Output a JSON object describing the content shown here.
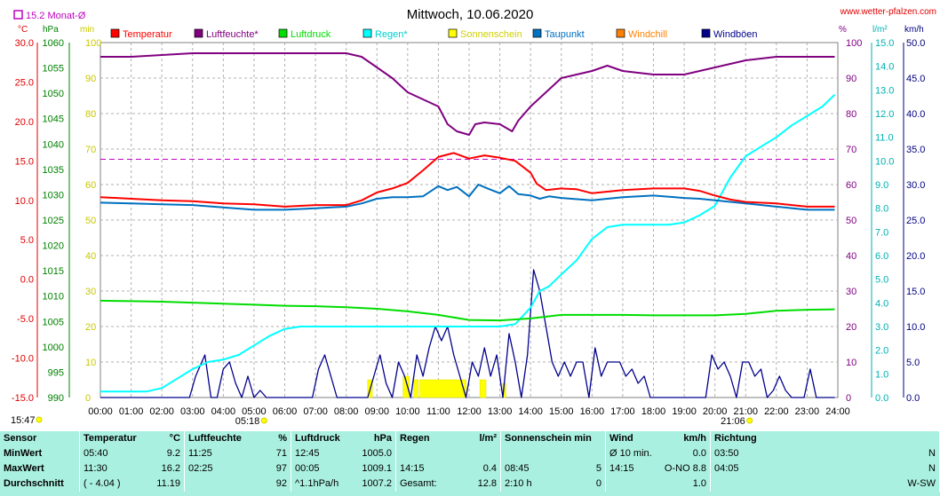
{
  "chart_data": {
    "type": "line",
    "title": "Mittwoch, 10.06.2020",
    "watermark": "www.wetter-pfalzen.com",
    "monthly_avg_label": "15.2 Monat-Ø",
    "monthly_avg_value": 15.2,
    "axis_units_left": [
      "°C",
      "hPa",
      "min"
    ],
    "axis_units_right": [
      "%",
      "l/m²",
      "km/h"
    ],
    "axes": {
      "temp_c": {
        "min": -15,
        "max": 30,
        "ticks": [
          "30.0",
          "25.0",
          "20.0",
          "15.0",
          "10.0",
          "5.0",
          "0.0",
          "-5.0",
          "-10.0",
          "-15.0"
        ]
      },
      "pressure_hpa": {
        "min": 990,
        "max": 1060,
        "ticks": [
          "1060",
          "1055",
          "1050",
          "1045",
          "1040",
          "1035",
          "1030",
          "1025",
          "1020",
          "1015",
          "1010",
          "1005",
          "1000",
          "995",
          "990"
        ]
      },
      "sunshine_min": {
        "min": 0,
        "max": 100,
        "ticks": [
          "100",
          "90",
          "80",
          "70",
          "60",
          "50",
          "40",
          "30",
          "20",
          "10",
          "0"
        ]
      },
      "humidity_pct": {
        "min": 0,
        "max": 100,
        "ticks": [
          "100",
          "90",
          "80",
          "70",
          "60",
          "50",
          "40",
          "30",
          "20",
          "10",
          "0"
        ]
      },
      "rain_l": {
        "min": 0,
        "max": 15,
        "ticks": [
          "15.0",
          "14.0",
          "13.0",
          "12.0",
          "11.0",
          "10.0",
          "9.0",
          "8.0",
          "7.0",
          "6.0",
          "5.0",
          "4.0",
          "3.0",
          "2.0",
          "1.0",
          "0.0"
        ]
      },
      "wind_kmh": {
        "min": 0,
        "max": 50,
        "ticks": [
          "50.0",
          "45.0",
          "40.0",
          "35.0",
          "30.0",
          "25.0",
          "20.0",
          "15.0",
          "10.0",
          "5.0",
          "0.0"
        ]
      }
    },
    "x_ticks": [
      "00:00",
      "01:00",
      "02:00",
      "03:00",
      "04:00",
      "05:00",
      "06:00",
      "07:00",
      "08:00",
      "09:00",
      "10:00",
      "11:00",
      "12:00",
      "13:00",
      "14:00",
      "15:00",
      "16:00",
      "17:00",
      "18:00",
      "19:00",
      "20:00",
      "21:00",
      "22:00",
      "23:00",
      "24:00"
    ],
    "sunrise": "05:18",
    "sunset": "21:06",
    "stamp_time": "15:47",
    "legend": [
      {
        "name": "Temperatur",
        "color": "#ff0000"
      },
      {
        "name": "Luftfeuchte*",
        "color": "#800080"
      },
      {
        "name": "Luftdruck",
        "color": "#00dd00"
      },
      {
        "name": "Regen*",
        "color": "#00ffff"
      },
      {
        "name": "Sonnenschein",
        "color": "#ffff00"
      },
      {
        "name": "Taupunkt",
        "color": "#0070c0"
      },
      {
        "name": "Windchill",
        "color": "#ff8000"
      },
      {
        "name": "Windböen",
        "color": "#00008b"
      }
    ],
    "series": [
      {
        "name": "Temperatur",
        "axis": "temp_c",
        "color": "#ff0000",
        "x": [
          0,
          1,
          2,
          3,
          4,
          5,
          6,
          7,
          8,
          8.5,
          9,
          9.5,
          10,
          10.5,
          11,
          11.5,
          12,
          12.5,
          13,
          13.5,
          14,
          14.2,
          14.5,
          15,
          15.5,
          16,
          17,
          18,
          19,
          19.5,
          20,
          20.5,
          21,
          22,
          23,
          23.9
        ],
        "y": [
          10.4,
          10.2,
          10.0,
          9.9,
          9.6,
          9.5,
          9.2,
          9.4,
          9.4,
          10.0,
          11.0,
          11.5,
          12.2,
          13.8,
          15.5,
          16.0,
          15.3,
          15.7,
          15.4,
          15.0,
          13.5,
          12.1,
          11.3,
          11.5,
          11.4,
          10.9,
          11.3,
          11.5,
          11.5,
          11.2,
          10.6,
          10.1,
          9.8,
          9.6,
          9.2,
          9.2
        ]
      },
      {
        "name": "Luftfeuchte*",
        "axis": "humidity_pct",
        "color": "#800080",
        "x": [
          0,
          1,
          2,
          3,
          4,
          5,
          6,
          7,
          8,
          8.5,
          9,
          9.5,
          10,
          10.5,
          11,
          11.3,
          11.6,
          12,
          12.2,
          12.5,
          13,
          13.4,
          13.6,
          14,
          14.5,
          15,
          15.5,
          16,
          16.5,
          17,
          18,
          19,
          20,
          21,
          22,
          23,
          23.9
        ],
        "y": [
          96,
          96,
          96.5,
          97,
          97,
          97,
          97,
          97,
          97,
          96,
          93,
          90,
          86,
          84,
          82,
          77,
          75,
          74,
          77,
          77.5,
          77,
          75,
          78,
          82,
          86,
          90,
          91,
          92,
          93.5,
          92,
          91,
          91,
          93,
          95,
          96,
          96,
          96
        ]
      },
      {
        "name": "Luftdruck",
        "axis": "pressure_hpa",
        "color": "#00dd00",
        "x": [
          0,
          1,
          2,
          3,
          4,
          5,
          6,
          7,
          8,
          9,
          10,
          11,
          12,
          13,
          14,
          15,
          16,
          17,
          18,
          19,
          20,
          21,
          22,
          23,
          23.9
        ],
        "y": [
          1009.1,
          1009.0,
          1008.9,
          1008.7,
          1008.5,
          1008.3,
          1008.1,
          1008.0,
          1007.8,
          1007.5,
          1007.0,
          1006.3,
          1005.3,
          1005.2,
          1005.6,
          1006.3,
          1006.3,
          1006.3,
          1006.2,
          1006.2,
          1006.2,
          1006.5,
          1007.1,
          1007.3,
          1007.4
        ]
      },
      {
        "name": "Regen*",
        "axis": "rain_l",
        "color": "#00ffff",
        "x": [
          0,
          1.5,
          2,
          2.5,
          3,
          3.5,
          4,
          4.5,
          5,
          5.5,
          6,
          6.5,
          7,
          8,
          9,
          10,
          11,
          12,
          13,
          13.5,
          14,
          14.3,
          14.6,
          15,
          15.5,
          16,
          16.5,
          17,
          17.5,
          18,
          18.5,
          19,
          19.5,
          20,
          20.5,
          21,
          21.5,
          22,
          22.5,
          23,
          23.5,
          23.9
        ],
        "y": [
          0.25,
          0.25,
          0.4,
          0.8,
          1.2,
          1.5,
          1.6,
          1.8,
          2.2,
          2.6,
          2.9,
          3.0,
          3.0,
          3.0,
          3.0,
          3.0,
          3.0,
          3.0,
          3.0,
          3.1,
          3.8,
          4.5,
          4.7,
          5.2,
          5.8,
          6.7,
          7.2,
          7.3,
          7.3,
          7.3,
          7.3,
          7.4,
          7.7,
          8.1,
          9.3,
          10.2,
          10.6,
          11.0,
          11.5,
          11.9,
          12.3,
          12.8
        ]
      },
      {
        "name": "Taupunkt",
        "axis": "temp_c",
        "color": "#0070c0",
        "x": [
          0,
          1,
          2,
          3,
          4,
          5,
          6,
          7,
          8,
          8.5,
          9,
          9.5,
          10,
          10.5,
          11,
          11.3,
          11.6,
          12,
          12.3,
          12.6,
          13,
          13.3,
          13.6,
          14,
          14.3,
          14.6,
          15,
          16,
          17,
          18,
          19,
          19.5,
          20,
          21,
          22,
          23,
          23.9
        ],
        "y": [
          9.7,
          9.6,
          9.5,
          9.4,
          9.1,
          8.8,
          8.8,
          9.0,
          9.2,
          9.6,
          10.2,
          10.4,
          10.4,
          10.5,
          11.8,
          11.3,
          11.7,
          10.5,
          12.0,
          11.5,
          10.9,
          11.8,
          10.8,
          10.6,
          10.2,
          10.5,
          10.3,
          10.0,
          10.4,
          10.6,
          10.3,
          10.2,
          10.0,
          9.6,
          9.2,
          8.8,
          8.8
        ]
      },
      {
        "name": "Windböen",
        "axis": "wind_kmh",
        "color": "#00008b",
        "x": [
          0,
          2.9,
          3.1,
          3.4,
          3.6,
          3.8,
          4.0,
          4.2,
          4.4,
          4.6,
          4.8,
          5.0,
          5.2,
          5.4,
          6.9,
          7.1,
          7.3,
          7.5,
          7.7,
          8.7,
          8.9,
          9.1,
          9.3,
          9.5,
          9.7,
          9.9,
          10.1,
          10.3,
          10.5,
          10.7,
          10.9,
          11.1,
          11.3,
          11.5,
          11.7,
          11.9,
          12.1,
          12.3,
          12.5,
          12.7,
          12.9,
          13.1,
          13.3,
          13.5,
          13.7,
          13.9,
          14.1,
          14.3,
          14.5,
          14.7,
          14.9,
          15.1,
          15.3,
          15.5,
          15.7,
          15.9,
          16.1,
          16.3,
          16.5,
          16.7,
          16.9,
          17.1,
          17.3,
          17.5,
          17.7,
          17.9,
          18.1,
          19.7,
          19.9,
          20.1,
          20.3,
          20.5,
          20.7,
          20.9,
          21.1,
          21.3,
          21.5,
          21.7,
          21.9,
          22.1,
          22.3,
          22.5,
          22.7,
          22.9,
          23.1,
          23.3,
          23.9
        ],
        "y": [
          0,
          0,
          3,
          6,
          0,
          0,
          4,
          5,
          2,
          0,
          3,
          0,
          1,
          0,
          0,
          4,
          6,
          3,
          0,
          0,
          3,
          6,
          2,
          0,
          5,
          3,
          0,
          6,
          3,
          7,
          10,
          8,
          10,
          6,
          3,
          0,
          5,
          3,
          7,
          3,
          6,
          0,
          9,
          5,
          0,
          6,
          18,
          15,
          10,
          5,
          3,
          5,
          3,
          5,
          5,
          0,
          7,
          3,
          5,
          5,
          5,
          3,
          4,
          2,
          3,
          0,
          0,
          0,
          6,
          4,
          5,
          3,
          0,
          5,
          5,
          3,
          4,
          0,
          1,
          3,
          1,
          0,
          0,
          0,
          4,
          0,
          0
        ]
      },
      {
        "name": "Sonnenschein",
        "axis": "sunshine_min",
        "color": "#ffff00",
        "bars": [
          {
            "from": 8.7,
            "to": 8.85,
            "value": 5
          },
          {
            "from": 9.85,
            "to": 10.05,
            "value": 6
          },
          {
            "from": 10.2,
            "to": 10.35,
            "value": 5
          },
          {
            "from": 10.4,
            "to": 11.9,
            "value": 5
          },
          {
            "from": 12.35,
            "to": 12.55,
            "value": 5
          },
          {
            "from": 13.1,
            "to": 13.2,
            "value": 4
          }
        ]
      }
    ],
    "monthly_avg_line": {
      "axis": "temp_c",
      "value": 15.2,
      "color": "#c000c0"
    }
  },
  "stats_table": {
    "columns": [
      {
        "header": "Sensor",
        "unit": "",
        "rows": [
          {
            "time": "MinWert",
            "value": ""
          },
          {
            "time": "MaxWert",
            "value": ""
          },
          {
            "time": "Durchschnitt",
            "value": ""
          }
        ]
      },
      {
        "header": "Temperatur",
        "unit": "°C",
        "rows": [
          {
            "time": "05:40",
            "value": "9.2"
          },
          {
            "time": "11:30",
            "value": "16.2"
          },
          {
            "time": "( - 4.04 )",
            "value": "11.19"
          }
        ]
      },
      {
        "header": "Luftfeuchte",
        "unit": "%",
        "rows": [
          {
            "time": "11:25",
            "value": "71"
          },
          {
            "time": "02:25",
            "value": "97"
          },
          {
            "time": "",
            "value": "92"
          }
        ]
      },
      {
        "header": "Luftdruck",
        "unit": "hPa",
        "rows": [
          {
            "time": "12:45",
            "value": "1005.0"
          },
          {
            "time": "00:05",
            "value": "1009.1"
          },
          {
            "time": "^1.1hPa/h",
            "value": "1007.2"
          }
        ]
      },
      {
        "header": "Regen",
        "unit": "l/m²",
        "rows": [
          {
            "time": "",
            "value": ""
          },
          {
            "time": "14:15",
            "value": "0.4"
          },
          {
            "time": "Gesamt:",
            "value": "12.8"
          }
        ]
      },
      {
        "header": "Sonnenschein min",
        "unit": "",
        "rows": [
          {
            "time": "",
            "value": ""
          },
          {
            "time": "08:45",
            "value": "5"
          },
          {
            "time": "2:10 h",
            "value": "0"
          }
        ]
      },
      {
        "header": "Wind",
        "unit": "km/h",
        "rows": [
          {
            "time": "Ø 10 min.",
            "value": "0.0"
          },
          {
            "time": "14:15",
            "value": "O-NO 8.8"
          },
          {
            "time": "",
            "value": "1.0"
          }
        ]
      },
      {
        "header": "Richtung",
        "unit": "",
        "rows": [
          {
            "time": "03:50",
            "value": "N"
          },
          {
            "time": "04:05",
            "value": "N"
          },
          {
            "time": "",
            "value": "W-SW"
          }
        ]
      }
    ]
  }
}
